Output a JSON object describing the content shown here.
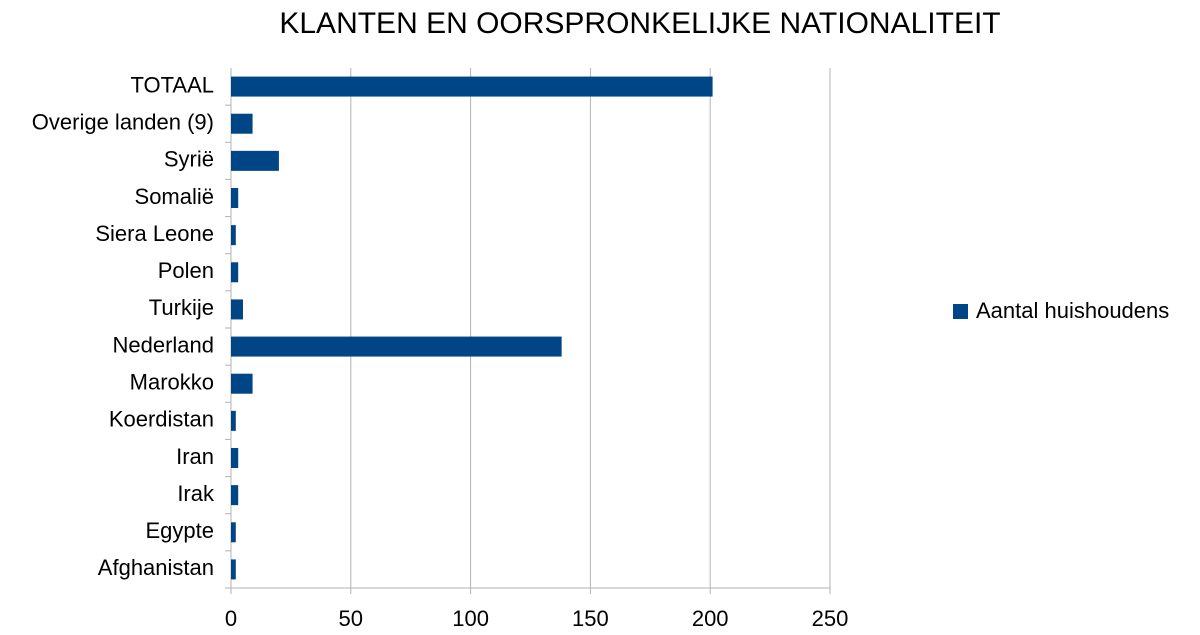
{
  "chart_data": {
    "type": "bar",
    "orientation": "horizontal",
    "title": "KLANTEN EN OORSPRONKELIJKE NATIONALITEIT",
    "categories": [
      "Afghanistan",
      "Egypte",
      "Irak",
      "Iran",
      "Koerdistan",
      "Marokko",
      "Nederland",
      "Turkije",
      "Polen",
      "Siera Leone",
      "Somalië",
      "Syrië",
      "Overige landen (9)",
      "TOTAAL"
    ],
    "series": [
      {
        "name": "Aantal huishoudens",
        "color": "#004586",
        "values": [
          2,
          2,
          3,
          3,
          2,
          9,
          138,
          5,
          3,
          2,
          3,
          20,
          9,
          201
        ]
      }
    ],
    "xlim": [
      0,
      250
    ],
    "xticks": [
      0,
      50,
      100,
      150,
      200,
      250
    ],
    "grid": true,
    "legend": "right"
  }
}
